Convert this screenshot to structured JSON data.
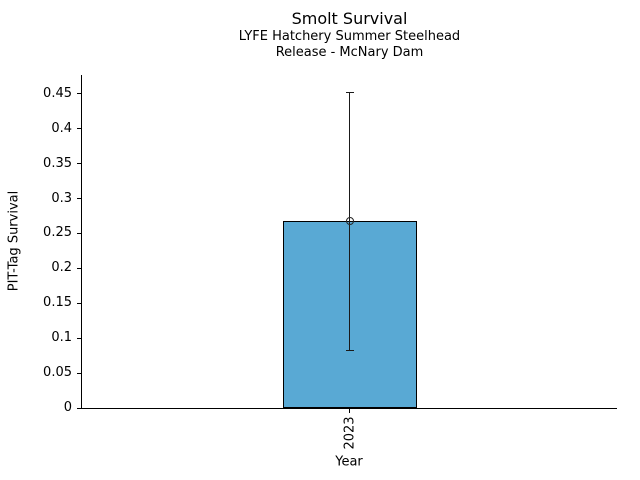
{
  "figure": {
    "background": "#ffffff"
  },
  "chart_data": {
    "type": "bar",
    "title": "Smolt Survival",
    "subtitle1": "LYFE Hatchery Summer Steelhead",
    "subtitle2": "Release - McNary Dam",
    "xlabel": "Year",
    "ylabel": "PIT-Tag Survival",
    "categories": [
      "2023"
    ],
    "values": [
      0.268
    ],
    "error_low": [
      0.083
    ],
    "error_high": [
      0.452
    ],
    "yticks": [
      0,
      0.05,
      0.1,
      0.15,
      0.2,
      0.25,
      0.3,
      0.35,
      0.4,
      0.45
    ],
    "ytick_labels": [
      "0",
      "0.05",
      "0.1",
      "0.15",
      "0.2",
      "0.25",
      "0.3",
      "0.35",
      "0.4",
      "0.45"
    ],
    "ylim": [
      0,
      0.477
    ],
    "grid": false,
    "legend": "none",
    "marker": "open-circle",
    "colors": {
      "bar_fill": "#59a9d4",
      "bar_edge": "#000000",
      "error": "#1a1a1a",
      "text": "#000000"
    }
  }
}
